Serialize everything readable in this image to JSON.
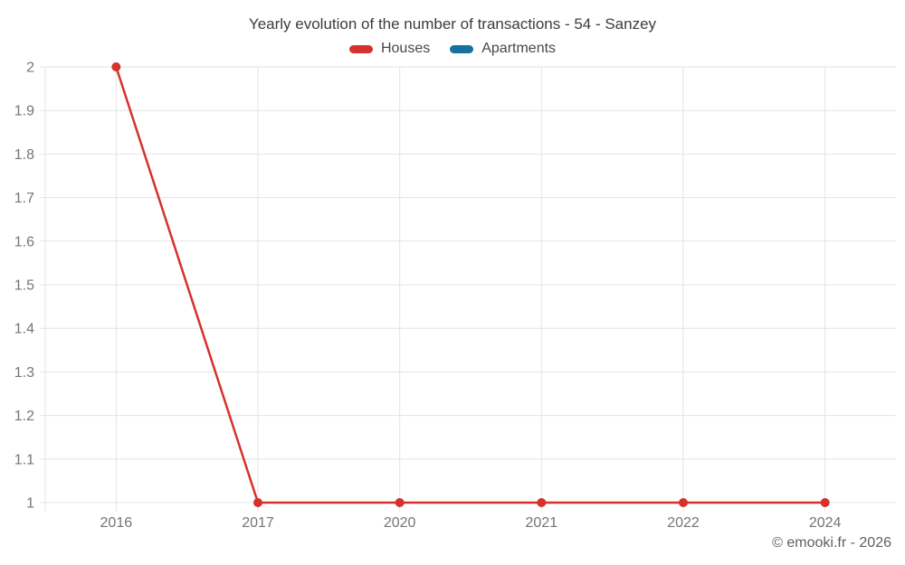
{
  "watermark": "© emooki.fr - 2026",
  "colors": {
    "houses": "#d5312d",
    "apartments": "#16719e",
    "gridline": "#e3e3e3",
    "tick_label": "#757575",
    "title": "#3c3c3c"
  },
  "chart_data": {
    "type": "line",
    "title": "Yearly evolution of the number of transactions - 54 - Sanzey",
    "categories": [
      "2016",
      "2017",
      "2020",
      "2021",
      "2022",
      "2024"
    ],
    "series": [
      {
        "name": "Houses",
        "color": "#d5312d",
        "values": [
          2,
          1,
          1,
          1,
          1,
          1
        ]
      },
      {
        "name": "Apartments",
        "color": "#16719e",
        "values": [
          null,
          null,
          null,
          null,
          null,
          null
        ]
      }
    ],
    "xlabel": "",
    "ylabel": "",
    "ylim": [
      1,
      2
    ],
    "ytick_step": 0.1,
    "ytick_labels": [
      "1",
      "1.1",
      "1.2",
      "1.3",
      "1.4",
      "1.5",
      "1.6",
      "1.7",
      "1.8",
      "1.9",
      "2"
    ],
    "grid": true,
    "legend_position": "top",
    "marker": "circle"
  }
}
